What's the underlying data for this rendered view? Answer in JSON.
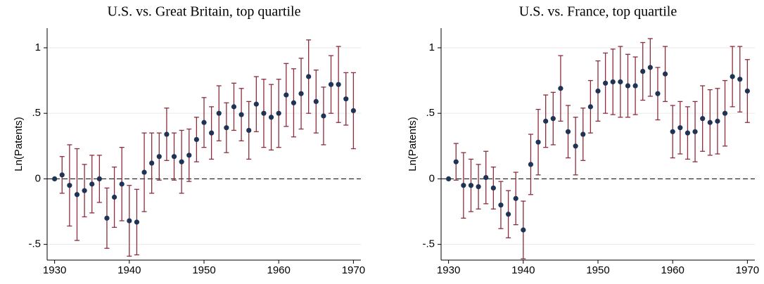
{
  "chart_data": [
    {
      "type": "scatter",
      "title": "U.S. vs. Great Britain, top quartile",
      "ylabel": "Ln(Patents)",
      "x": [
        1930,
        1931,
        1932,
        1933,
        1934,
        1935,
        1936,
        1937,
        1938,
        1939,
        1940,
        1941,
        1942,
        1943,
        1944,
        1945,
        1946,
        1947,
        1948,
        1949,
        1950,
        1951,
        1952,
        1953,
        1954,
        1955,
        1956,
        1957,
        1958,
        1959,
        1960,
        1961,
        1962,
        1963,
        1964,
        1965,
        1966,
        1967,
        1968,
        1969,
        1970
      ],
      "values": [
        0,
        0.03,
        -0.05,
        -0.12,
        -0.09,
        -0.04,
        0,
        -0.3,
        -0.14,
        -0.04,
        -0.32,
        -0.33,
        0.05,
        0.12,
        0.17,
        0.34,
        0.17,
        0.13,
        0.18,
        0.3,
        0.43,
        0.35,
        0.5,
        0.39,
        0.55,
        0.49,
        0.37,
        0.57,
        0.5,
        0.47,
        0.5,
        0.64,
        0.58,
        0.65,
        0.78,
        0.59,
        0.48,
        0.72,
        0.72,
        0.61,
        0.52
      ],
      "errors": [
        0,
        0.14,
        0.31,
        0.35,
        0.2,
        0.22,
        0.18,
        0.23,
        0.23,
        0.28,
        0.27,
        0.25,
        0.3,
        0.23,
        0.18,
        0.2,
        0.18,
        0.24,
        0.2,
        0.17,
        0.19,
        0.2,
        0.21,
        0.19,
        0.18,
        0.2,
        0.22,
        0.21,
        0.26,
        0.25,
        0.26,
        0.24,
        0.26,
        0.27,
        0.28,
        0.24,
        0.22,
        0.22,
        0.29,
        0.2,
        0.29
      ],
      "color": "#1f3454",
      "error_color": "#8b2d3c",
      "xlim": [
        1929,
        1971
      ],
      "xticks": [
        1930,
        1940,
        1950,
        1960,
        1970
      ],
      "ylim": [
        -0.62,
        1.15
      ],
      "yticks": [
        {
          "value": -0.5,
          "label": "-.5"
        },
        0,
        {
          "value": 0.5,
          "label": ".5"
        },
        1
      ],
      "grid": true,
      "reference_line": 0
    },
    {
      "type": "scatter",
      "title": "U.S. vs. France, top quartile",
      "ylabel": "Ln(Patents)",
      "x": [
        1930,
        1931,
        1932,
        1933,
        1934,
        1935,
        1936,
        1937,
        1938,
        1939,
        1940,
        1941,
        1942,
        1943,
        1944,
        1945,
        1946,
        1947,
        1948,
        1949,
        1950,
        1951,
        1952,
        1953,
        1954,
        1955,
        1956,
        1957,
        1958,
        1959,
        1960,
        1961,
        1962,
        1963,
        1964,
        1965,
        1966,
        1967,
        1968,
        1969,
        1970
      ],
      "values": [
        0,
        0.13,
        -0.05,
        -0.05,
        -0.06,
        0.01,
        -0.07,
        -0.2,
        -0.27,
        -0.15,
        -0.39,
        0.11,
        0.28,
        0.44,
        0.46,
        0.69,
        0.36,
        0.25,
        0.34,
        0.55,
        0.67,
        0.73,
        0.74,
        0.74,
        0.71,
        0.71,
        0.82,
        0.85,
        0.65,
        0.8,
        0.36,
        0.39,
        0.35,
        0.36,
        0.46,
        0.43,
        0.44,
        0.5,
        0.78,
        0.76,
        0.67
      ],
      "errors": [
        0,
        0.14,
        0.25,
        0.2,
        0.17,
        0.2,
        0.16,
        0.18,
        0.18,
        0.2,
        0.22,
        0.23,
        0.25,
        0.2,
        0.2,
        0.25,
        0.2,
        0.22,
        0.2,
        0.2,
        0.23,
        0.23,
        0.25,
        0.27,
        0.24,
        0.22,
        0.22,
        0.22,
        0.2,
        0.21,
        0.2,
        0.2,
        0.2,
        0.23,
        0.25,
        0.25,
        0.25,
        0.25,
        0.23,
        0.25,
        0.24
      ],
      "color": "#1f3454",
      "error_color": "#8b2d3c",
      "xlim": [
        1929,
        1971
      ],
      "xticks": [
        1930,
        1940,
        1950,
        1960,
        1970
      ],
      "ylim": [
        -0.62,
        1.15
      ],
      "yticks": [
        {
          "value": -0.5,
          "label": "-.5"
        },
        0,
        {
          "value": 0.5,
          "label": ".5"
        },
        1
      ],
      "grid": true,
      "reference_line": 0
    }
  ]
}
